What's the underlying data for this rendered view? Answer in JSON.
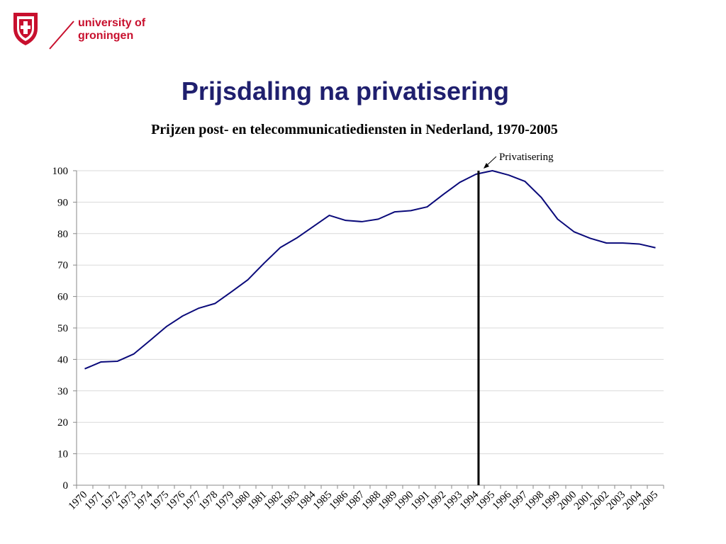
{
  "brand": {
    "line1": "university of",
    "line2": "groningen",
    "color": "#c8102e"
  },
  "slide": {
    "title": "Prijsdaling na privatisering",
    "title_color": "#1f1f6e"
  },
  "chart_data": {
    "type": "line",
    "title": "Prijzen post- en telecommunicatiediensten in Nederland, 1970-2005",
    "xlabel": "",
    "ylabel": "",
    "categories": [
      "1970",
      "1971",
      "1972",
      "1973",
      "1974",
      "1975",
      "1976",
      "1977",
      "1978",
      "1979",
      "1980",
      "1981",
      "1982",
      "1983",
      "1984",
      "1985",
      "1986",
      "1987",
      "1988",
      "1989",
      "1990",
      "1991",
      "1992",
      "1993",
      "1994",
      "1995",
      "1996",
      "1997",
      "1998",
      "1999",
      "2000",
      "2001",
      "2002",
      "2003",
      "2004",
      "2005"
    ],
    "series": [
      {
        "values": [
          37,
          39.2,
          39.4,
          41.7,
          46,
          50.4,
          53.8,
          56.3,
          57.8,
          61.5,
          65.3,
          70.6,
          75.6,
          78.6,
          82.2,
          85.8,
          84.2,
          83.8,
          84.6,
          86.9,
          87.3,
          88.5,
          92.5,
          96.3,
          98.9,
          100,
          98.6,
          96.6,
          91.5,
          84.6,
          80.6,
          78.5,
          77,
          77,
          76.7,
          75.5
        ],
        "color": "#0a0a7a"
      }
    ],
    "ylim": [
      0,
      100
    ],
    "yticks": [
      0,
      10,
      20,
      30,
      40,
      50,
      60,
      70,
      80,
      90,
      100
    ],
    "grid": true,
    "annotation": {
      "label": "Privatisering",
      "at_category": "1994"
    }
  }
}
